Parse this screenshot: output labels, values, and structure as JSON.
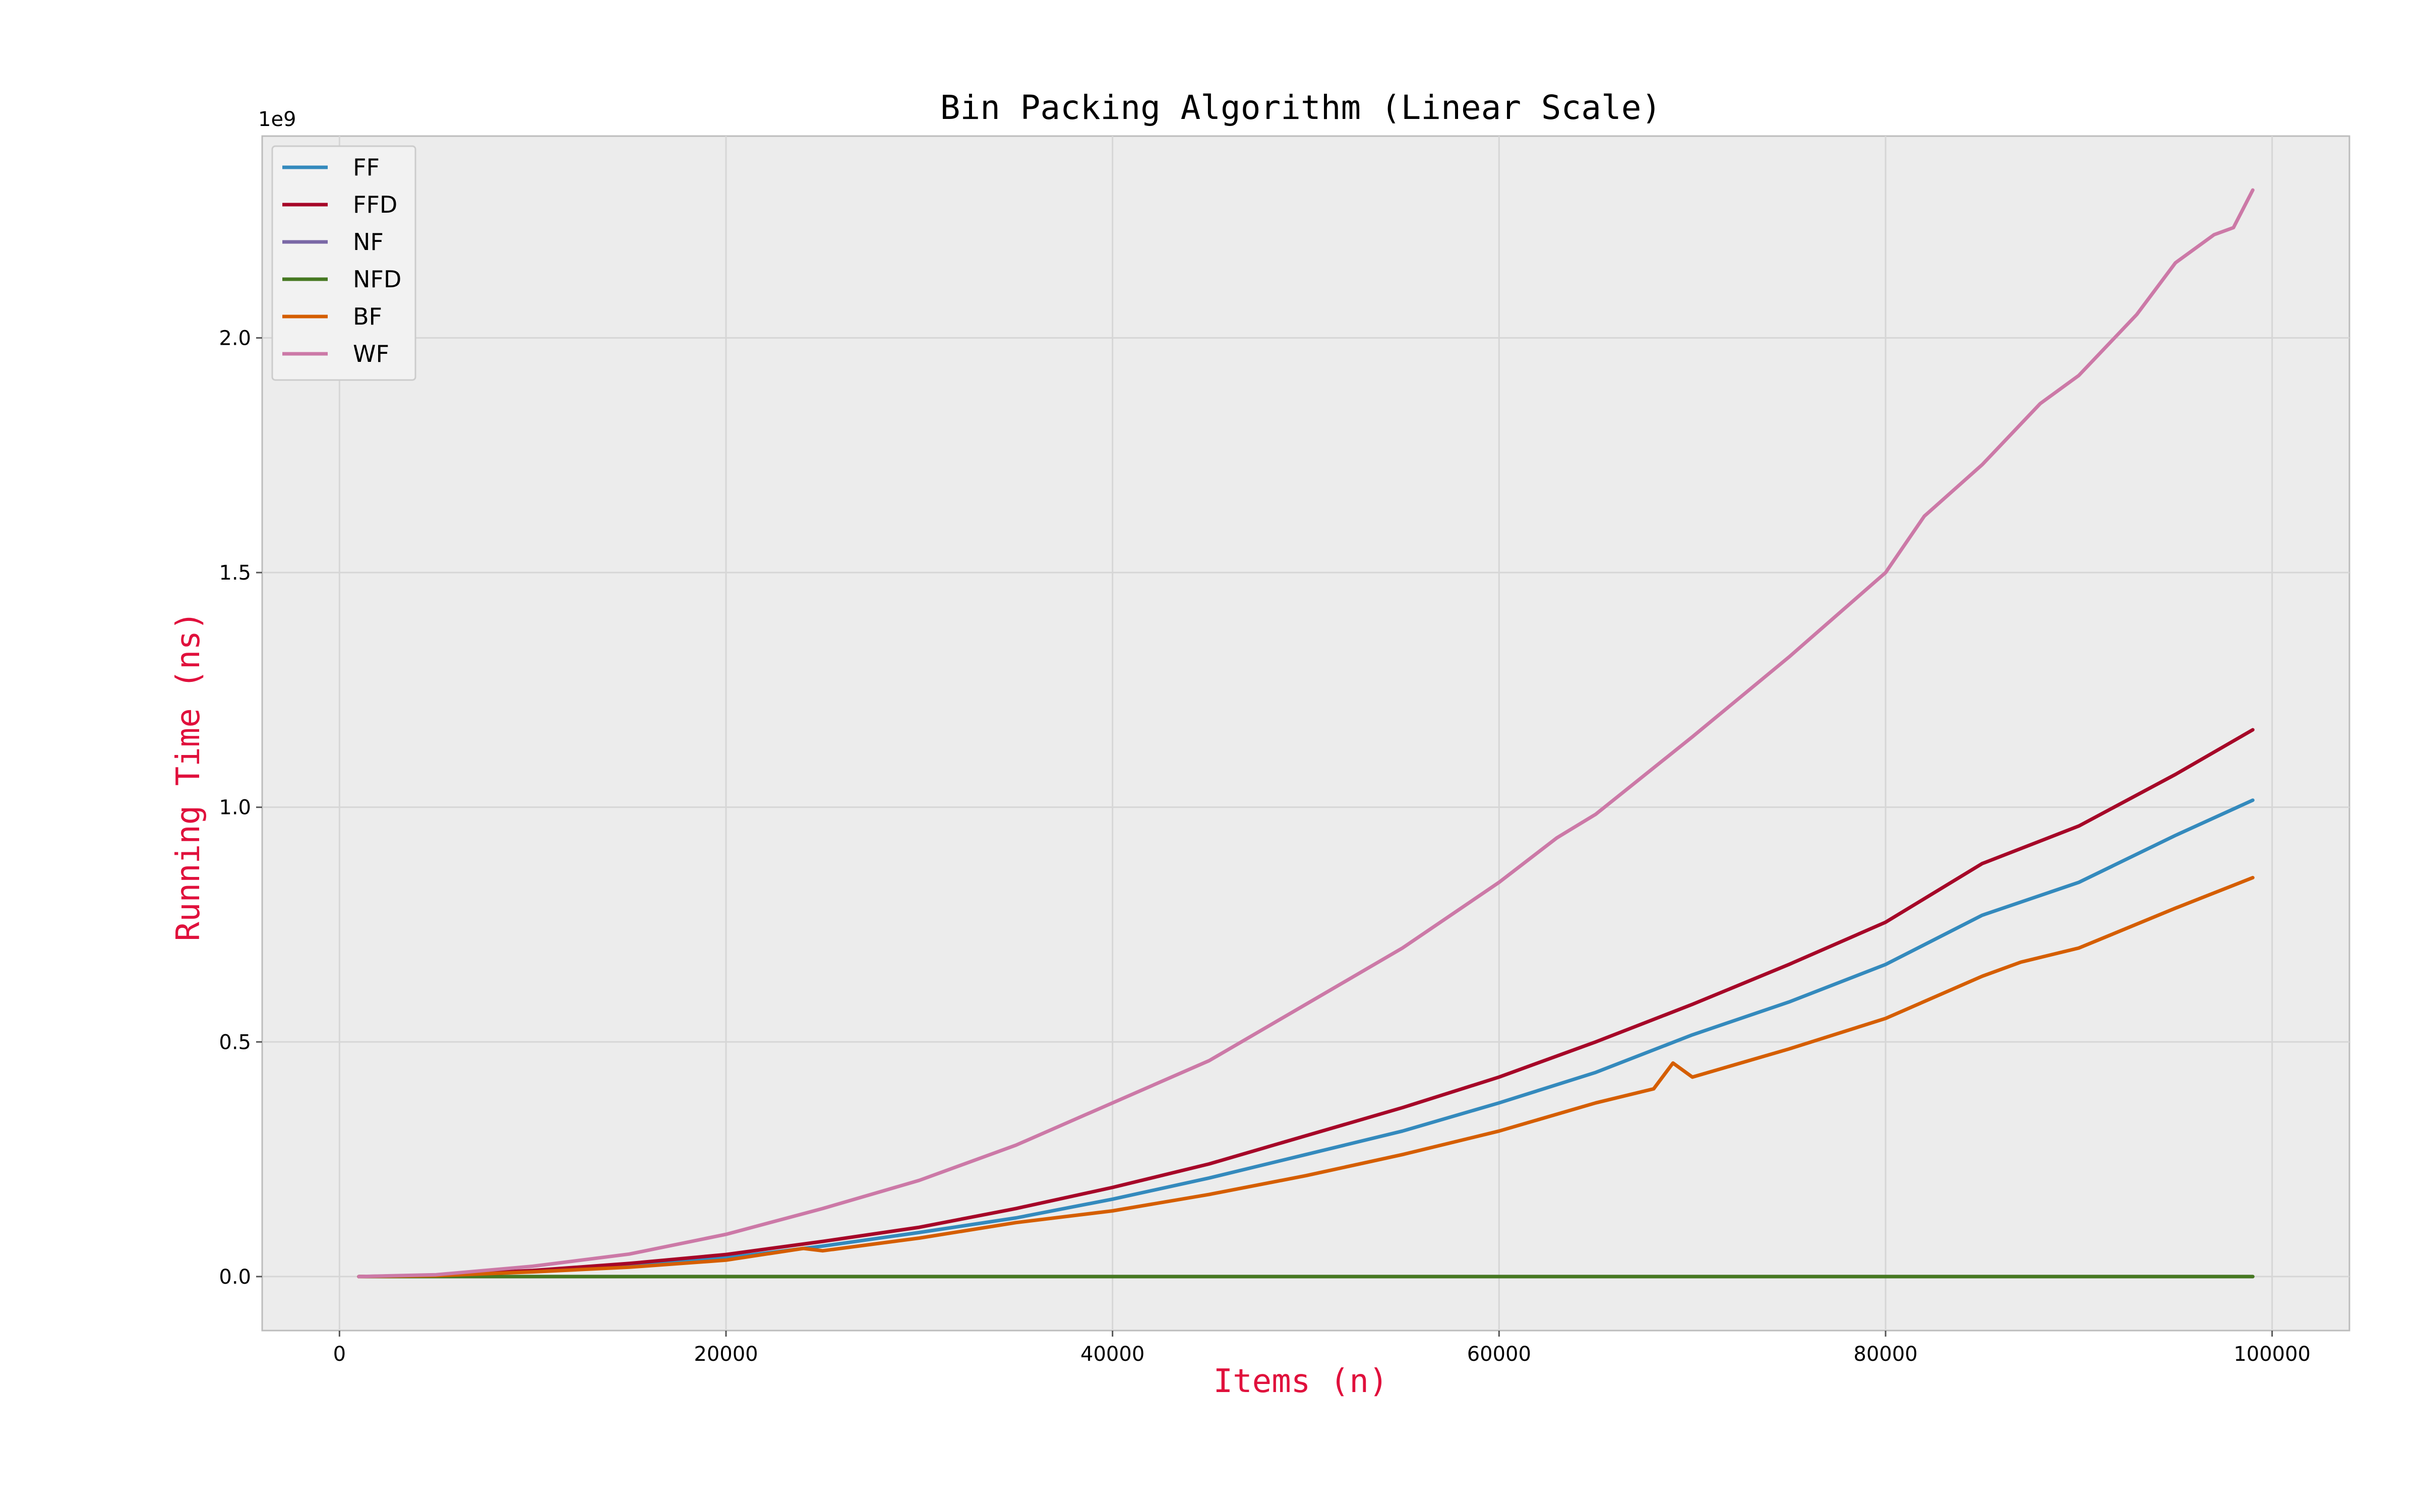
{
  "chart_data": {
    "type": "line",
    "title": "Bin Packing Algorithm (Linear Scale)",
    "xlabel": "Items (n)",
    "ylabel": "Running Time (ns)",
    "y_offset_text": "1e9",
    "xlim": [
      -4000,
      104000
    ],
    "ylim": [
      -0.115,
      2.43
    ],
    "x_ticks": [
      0,
      20000,
      40000,
      60000,
      80000,
      100000
    ],
    "x_tick_labels": [
      "0",
      "20000",
      "40000",
      "60000",
      "80000",
      "100000"
    ],
    "y_ticks": [
      0.0,
      0.5,
      1.0,
      1.5,
      2.0
    ],
    "y_tick_labels": [
      "0.0",
      "0.5",
      "1.0",
      "1.5",
      "2.0"
    ],
    "grid": true,
    "legend_position": "top-left",
    "colors": {
      "label": "#e0103c",
      "plot_background": "#ececec",
      "grid": "#d6d6d6"
    },
    "series": [
      {
        "name": "FF",
        "color": "#348abd",
        "points": [
          [
            1000,
            0
          ],
          [
            5000,
            0.002
          ],
          [
            10000,
            0.012
          ],
          [
            15000,
            0.025
          ],
          [
            20000,
            0.04
          ],
          [
            25000,
            0.065
          ],
          [
            30000,
            0.094
          ],
          [
            35000,
            0.125
          ],
          [
            40000,
            0.165
          ],
          [
            45000,
            0.21
          ],
          [
            50000,
            0.26
          ],
          [
            55000,
            0.31
          ],
          [
            60000,
            0.37
          ],
          [
            65000,
            0.435
          ],
          [
            70000,
            0.515
          ],
          [
            75000,
            0.585
          ],
          [
            80000,
            0.665
          ],
          [
            85000,
            0.77
          ],
          [
            90000,
            0.84
          ],
          [
            95000,
            0.94
          ],
          [
            99000,
            1.015
          ]
        ]
      },
      {
        "name": "FFD",
        "color": "#a60628",
        "points": [
          [
            1000,
            0
          ],
          [
            5000,
            0.003
          ],
          [
            10000,
            0.013
          ],
          [
            15000,
            0.028
          ],
          [
            20000,
            0.047
          ],
          [
            25000,
            0.075
          ],
          [
            30000,
            0.105
          ],
          [
            35000,
            0.145
          ],
          [
            40000,
            0.19
          ],
          [
            45000,
            0.24
          ],
          [
            50000,
            0.3
          ],
          [
            55000,
            0.36
          ],
          [
            60000,
            0.425
          ],
          [
            65000,
            0.5
          ],
          [
            70000,
            0.58
          ],
          [
            75000,
            0.665
          ],
          [
            80000,
            0.755
          ],
          [
            85000,
            0.88
          ],
          [
            90000,
            0.96
          ],
          [
            95000,
            1.07
          ],
          [
            99000,
            1.165
          ]
        ]
      },
      {
        "name": "NF",
        "color": "#7a68a6",
        "points": [
          [
            1000,
            0
          ],
          [
            20000,
            0
          ],
          [
            40000,
            0
          ],
          [
            60000,
            0
          ],
          [
            80000,
            0
          ],
          [
            99000,
            0
          ]
        ]
      },
      {
        "name": "NFD",
        "color": "#467821",
        "points": [
          [
            1000,
            0
          ],
          [
            20000,
            0
          ],
          [
            40000,
            0
          ],
          [
            60000,
            0
          ],
          [
            80000,
            0
          ],
          [
            99000,
            0
          ]
        ]
      },
      {
        "name": "BF",
        "color": "#d55e00",
        "points": [
          [
            1000,
            0
          ],
          [
            5000,
            0.002
          ],
          [
            10000,
            0.01
          ],
          [
            15000,
            0.02
          ],
          [
            20000,
            0.035
          ],
          [
            24000,
            0.06
          ],
          [
            25000,
            0.055
          ],
          [
            30000,
            0.082
          ],
          [
            35000,
            0.115
          ],
          [
            40000,
            0.14
          ],
          [
            45000,
            0.175
          ],
          [
            50000,
            0.215
          ],
          [
            55000,
            0.26
          ],
          [
            60000,
            0.31
          ],
          [
            65000,
            0.37
          ],
          [
            68000,
            0.4
          ],
          [
            69000,
            0.455
          ],
          [
            70000,
            0.425
          ],
          [
            75000,
            0.485
          ],
          [
            80000,
            0.55
          ],
          [
            85000,
            0.64
          ],
          [
            87000,
            0.67
          ],
          [
            90000,
            0.7
          ],
          [
            95000,
            0.785
          ],
          [
            99000,
            0.85
          ]
        ]
      },
      {
        "name": "WF",
        "color": "#cc79a7",
        "points": [
          [
            1000,
            0
          ],
          [
            5000,
            0.004
          ],
          [
            10000,
            0.022
          ],
          [
            15000,
            0.048
          ],
          [
            20000,
            0.09
          ],
          [
            25000,
            0.145
          ],
          [
            30000,
            0.205
          ],
          [
            35000,
            0.28
          ],
          [
            40000,
            0.37
          ],
          [
            45000,
            0.46
          ],
          [
            50000,
            0.58
          ],
          [
            55000,
            0.7
          ],
          [
            60000,
            0.84
          ],
          [
            63000,
            0.935
          ],
          [
            65000,
            0.985
          ],
          [
            70000,
            1.15
          ],
          [
            75000,
            1.32
          ],
          [
            80000,
            1.5
          ],
          [
            82000,
            1.62
          ],
          [
            85000,
            1.73
          ],
          [
            88000,
            1.86
          ],
          [
            90000,
            1.92
          ],
          [
            93000,
            2.05
          ],
          [
            95000,
            2.16
          ],
          [
            97000,
            2.22
          ],
          [
            98000,
            2.235
          ],
          [
            99000,
            2.315
          ]
        ]
      }
    ]
  }
}
